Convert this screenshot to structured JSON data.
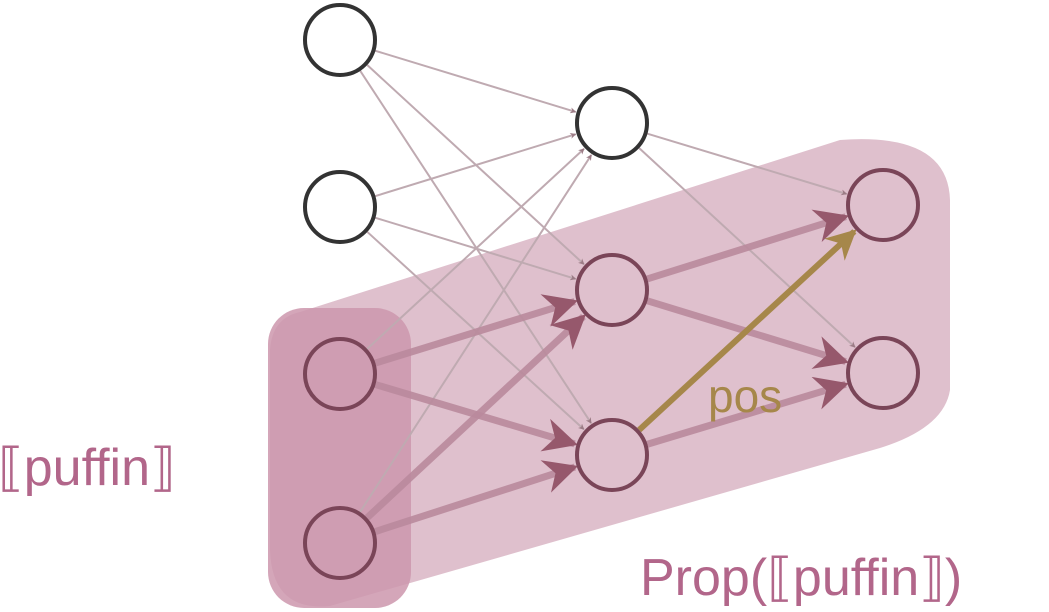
{
  "diagram": {
    "labels": {
      "puffin": "⟦puffin⟧",
      "prop": "Prop(⟦puffin⟧)",
      "pos": "pos"
    },
    "colors": {
      "background": "#ffffff",
      "node_stroke": "#333333",
      "highlight_stroke": "#7a4558",
      "region_fill": "#dfc0cd",
      "input_region_fill": "#cd97ad",
      "faint_edge": "#bfaab1",
      "faint_arrow": "#9c7c86",
      "strong_edge": "#b98a9c",
      "strong_arrow": "#96586c",
      "pos_arrow": "#a6874a",
      "label_pink": "#b2668a",
      "label_gold": "#a6874a"
    },
    "layers": [
      {
        "name": "input",
        "nodes": [
          {
            "id": "i1",
            "highlighted": false
          },
          {
            "id": "i2",
            "highlighted": false
          },
          {
            "id": "i3",
            "highlighted": true
          },
          {
            "id": "i4",
            "highlighted": true
          }
        ]
      },
      {
        "name": "hidden",
        "nodes": [
          {
            "id": "h1",
            "highlighted": false
          },
          {
            "id": "h2",
            "highlighted": true
          },
          {
            "id": "h3",
            "highlighted": true
          }
        ]
      },
      {
        "name": "output",
        "nodes": [
          {
            "id": "o1",
            "highlighted": true
          },
          {
            "id": "o2",
            "highlighted": true
          }
        ]
      }
    ],
    "edges": [
      {
        "from": "i1",
        "to": "h1",
        "strong": false
      },
      {
        "from": "i1",
        "to": "h2",
        "strong": false
      },
      {
        "from": "i1",
        "to": "h3",
        "strong": false
      },
      {
        "from": "i2",
        "to": "h1",
        "strong": false
      },
      {
        "from": "i2",
        "to": "h2",
        "strong": false
      },
      {
        "from": "i2",
        "to": "h3",
        "strong": false
      },
      {
        "from": "i3",
        "to": "h1",
        "strong": false
      },
      {
        "from": "i3",
        "to": "h2",
        "strong": true
      },
      {
        "from": "i3",
        "to": "h3",
        "strong": true
      },
      {
        "from": "i4",
        "to": "h1",
        "strong": false
      },
      {
        "from": "i4",
        "to": "h2",
        "strong": true
      },
      {
        "from": "i4",
        "to": "h3",
        "strong": true
      },
      {
        "from": "h1",
        "to": "o1",
        "strong": false
      },
      {
        "from": "h1",
        "to": "o2",
        "strong": false
      },
      {
        "from": "h2",
        "to": "o1",
        "strong": true
      },
      {
        "from": "h2",
        "to": "o2",
        "strong": true
      },
      {
        "from": "h3",
        "to": "o2",
        "strong": true
      }
    ],
    "special_edge": {
      "from": "h3",
      "to": "o1",
      "label": "pos"
    }
  }
}
